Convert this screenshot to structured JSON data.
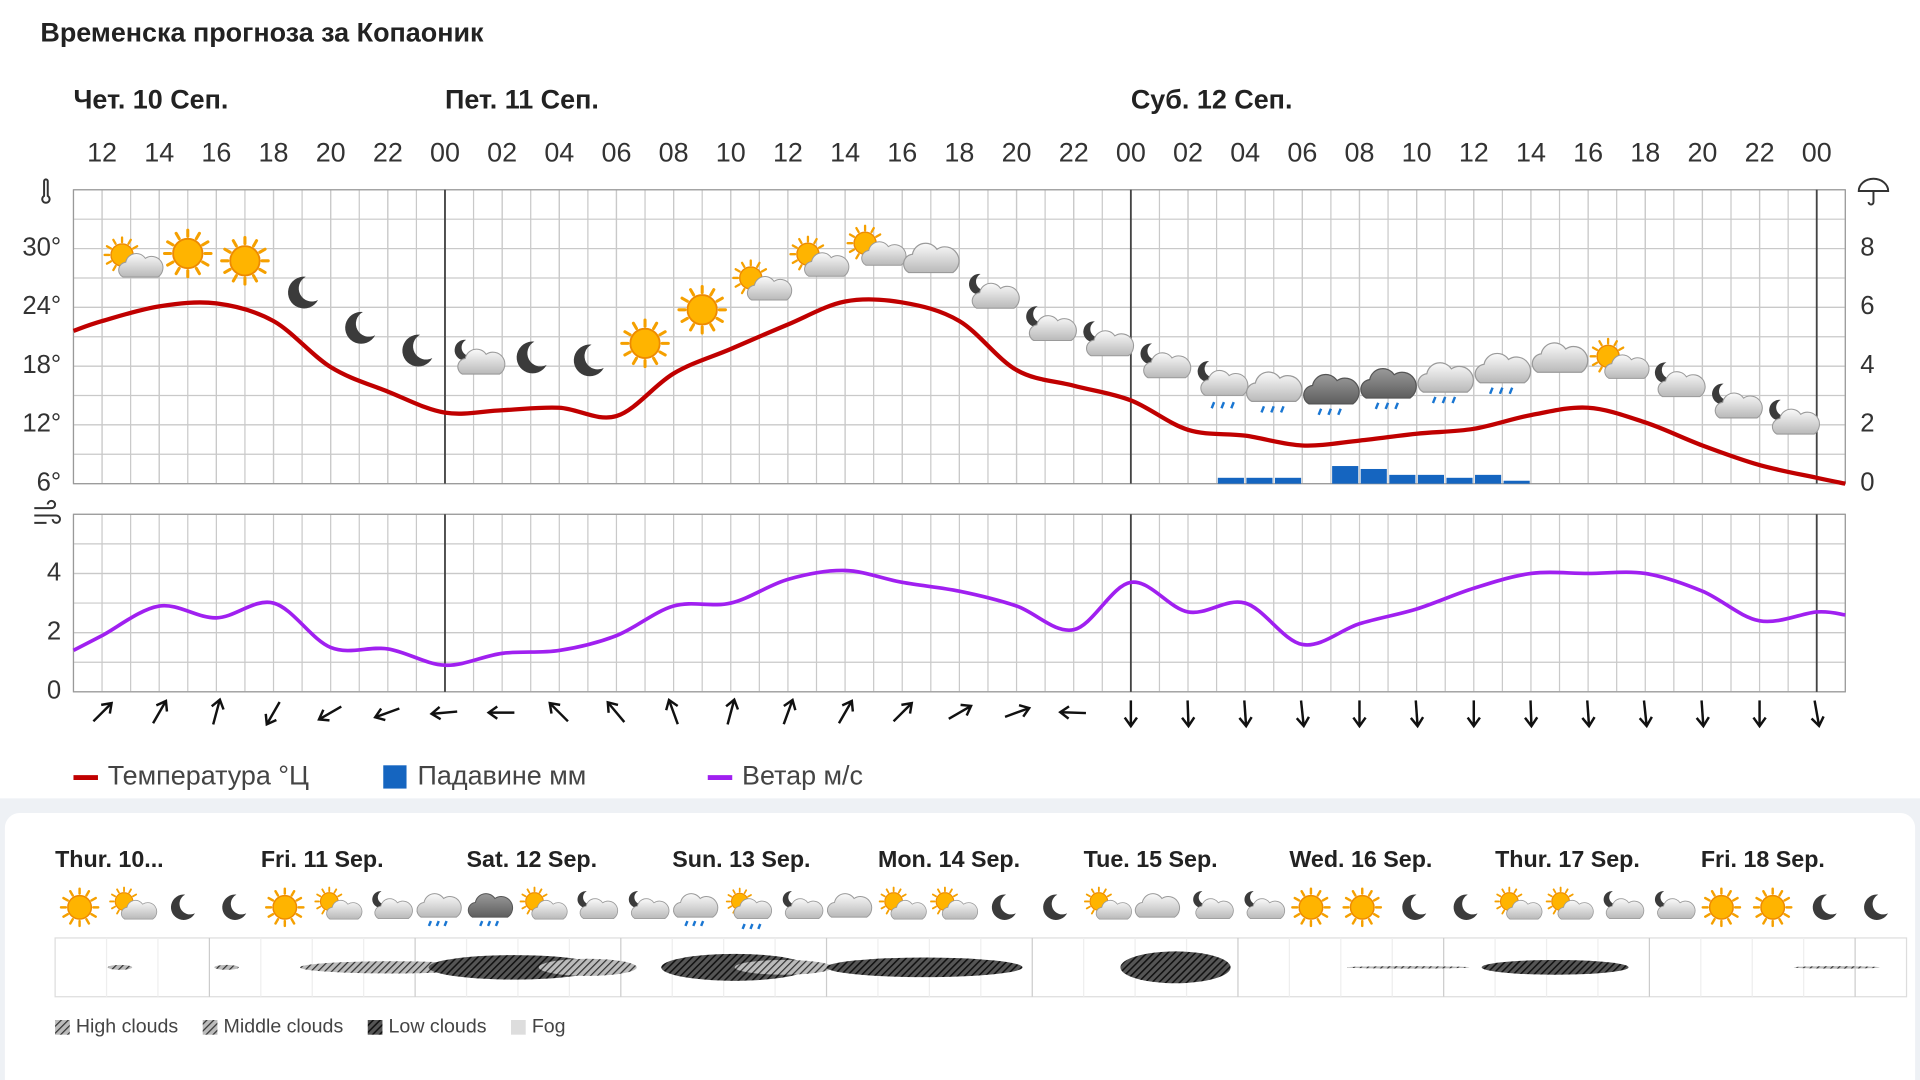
{
  "title": "Временска прогноза за Копаоник",
  "chart_data": [
    {
      "type": "line",
      "days": [
        "Чет. 10 Сеп.",
        "Пет. 11 Сеп.",
        "Суб. 12 Сеп."
      ],
      "day_lines": [
        24,
        48,
        72
      ],
      "x": [
        11,
        12,
        14,
        16,
        18,
        20,
        22,
        24,
        26,
        28,
        30,
        32,
        34,
        36,
        38,
        40,
        42,
        44,
        46,
        48,
        50,
        52,
        54,
        56,
        58,
        60,
        62,
        64,
        66,
        68,
        70,
        72,
        73
      ],
      "xlim": [
        11,
        73
      ],
      "xticks": [
        {
          "value": 12,
          "label": "12"
        },
        {
          "value": 14,
          "label": "14"
        },
        {
          "value": 16,
          "label": "16"
        },
        {
          "value": 18,
          "label": "18"
        },
        {
          "value": 20,
          "label": "20"
        },
        {
          "value": 22,
          "label": "22"
        },
        {
          "value": 24,
          "label": "00"
        },
        {
          "value": 26,
          "label": "02"
        },
        {
          "value": 28,
          "label": "04"
        },
        {
          "value": 30,
          "label": "06"
        },
        {
          "value": 32,
          "label": "08"
        },
        {
          "value": 34,
          "label": "10"
        },
        {
          "value": 36,
          "label": "12"
        },
        {
          "value": 38,
          "label": "14"
        },
        {
          "value": 40,
          "label": "16"
        },
        {
          "value": 42,
          "label": "18"
        },
        {
          "value": 44,
          "label": "20"
        },
        {
          "value": 46,
          "label": "22"
        },
        {
          "value": 48,
          "label": "00"
        },
        {
          "value": 50,
          "label": "02"
        },
        {
          "value": 52,
          "label": "04"
        },
        {
          "value": 54,
          "label": "06"
        },
        {
          "value": 56,
          "label": "08"
        },
        {
          "value": 58,
          "label": "10"
        },
        {
          "value": 60,
          "label": "12"
        },
        {
          "value": 62,
          "label": "14"
        },
        {
          "value": 64,
          "label": "16"
        },
        {
          "value": 66,
          "label": "18"
        },
        {
          "value": 68,
          "label": "20"
        },
        {
          "value": 70,
          "label": "22"
        },
        {
          "value": 72,
          "label": "00"
        }
      ],
      "ylim": [
        6,
        36
      ],
      "yticks": [
        {
          "value": 6,
          "label": "6°"
        },
        {
          "value": 12,
          "label": "12°"
        },
        {
          "value": 18,
          "label": "18°"
        },
        {
          "value": 24,
          "label": "24°"
        },
        {
          "value": 30,
          "label": "30°"
        }
      ],
      "y2lim": [
        0,
        10
      ],
      "y2ticks": [
        0,
        2,
        4,
        6,
        8
      ],
      "grid": true,
      "series": [
        {
          "name": "Температура °Ц",
          "color": "#c00000",
          "values": [
            21.6,
            22.6,
            24.1,
            24.4,
            22.6,
            17.9,
            15.4,
            13.25,
            13.5,
            13.75,
            12.9,
            17.25,
            19.75,
            22.25,
            24.6,
            24.5,
            22.6,
            17.6,
            16,
            14.5,
            11.5,
            10.9,
            9.9,
            10.4,
            11.1,
            11.6,
            13,
            13.75,
            12.25,
            9.9,
            7.9,
            6.6,
            6
          ]
        },
        {
          "name": "Падавине мм",
          "color": "#1565c0",
          "type": "bar",
          "axis": "y2",
          "x": [
            51,
            52,
            53,
            55,
            56,
            57,
            58,
            59,
            60,
            61
          ],
          "values": [
            0.2,
            0.2,
            0.2,
            0.6,
            0.5,
            0.3,
            0.3,
            0.2,
            0.3,
            0.1
          ]
        }
      ]
    },
    {
      "type": "line",
      "x": [
        11,
        12,
        14,
        16,
        18,
        20,
        22,
        24,
        26,
        28,
        30,
        32,
        34,
        36,
        38,
        40,
        42,
        44,
        46,
        48,
        50,
        52,
        54,
        56,
        58,
        60,
        62,
        64,
        66,
        68,
        70,
        72,
        73
      ],
      "xlim": [
        11,
        73
      ],
      "ylim": [
        0,
        6
      ],
      "yticks": [
        0,
        2,
        4
      ],
      "grid": true,
      "series": [
        {
          "name": "Ветар м/с",
          "color": "#a020f0",
          "values": [
            1.4,
            1.9,
            2.9,
            2.5,
            3.0,
            1.5,
            1.45,
            0.9,
            1.3,
            1.4,
            1.9,
            2.9,
            3.0,
            3.8,
            4.1,
            3.7,
            3.4,
            2.9,
            2.1,
            3.7,
            2.7,
            3.0,
            1.6,
            2.3,
            2.8,
            3.5,
            4.0,
            4.0,
            4.0,
            3.4,
            2.4,
            2.7,
            2.6
          ]
        }
      ]
    }
  ],
  "overview": {
    "days": [
      "Thur. 10...",
      "Fri. 11 Sep.",
      "Sat. 12 Sep.",
      "Sun. 13 Sep.",
      "Mon. 14 Sep.",
      "Tue. 15 Sep.",
      "Wed. 16 Sep.",
      "Thur. 17 Sep.",
      "Fri. 18 Sep."
    ],
    "cloud_legend": [
      "High clouds",
      "Middle clouds",
      "Low clouds",
      "Fog"
    ]
  }
}
